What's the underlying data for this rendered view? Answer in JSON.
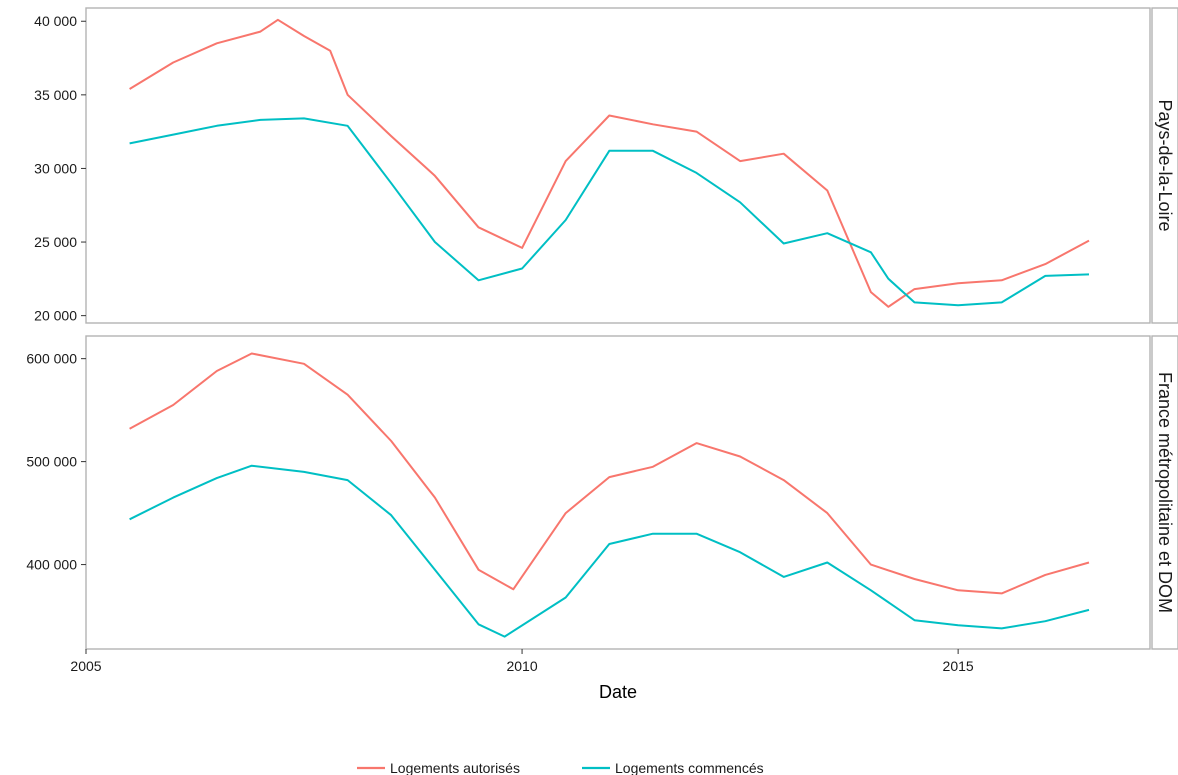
{
  "chart_data": {
    "type": "line",
    "xlabel": "Date",
    "x_ticks": [
      2005,
      2010,
      2015
    ],
    "x_range": [
      2005.0,
      2017.2
    ],
    "colors": {
      "Logements autorisés": "#F8766D",
      "Logements commencés": "#00BFC4"
    },
    "legend_position": "bottom",
    "legend": [
      "Logements autorisés",
      "Logements commencés"
    ],
    "panels": [
      {
        "strip": "Pays-de-la-Loire",
        "ylim": [
          19500,
          40900
        ],
        "y_ticks": [
          20000,
          25000,
          30000,
          35000,
          40000
        ],
        "y_tick_labels": [
          "20 000",
          "25 000",
          "30 000",
          "35 000",
          "40 000"
        ],
        "series": [
          {
            "name": "Logements autorisés",
            "x": [
              2005.5,
              2006.0,
              2006.5,
              2007.0,
              2007.2,
              2007.5,
              2007.8,
              2008.0,
              2008.5,
              2009.0,
              2009.5,
              2010.0,
              2010.5,
              2011.0,
              2011.5,
              2012.0,
              2012.5,
              2013.0,
              2013.5,
              2014.0,
              2014.2,
              2014.5,
              2015.0,
              2015.5,
              2016.0,
              2016.5
            ],
            "values": [
              35400,
              37200,
              38500,
              39300,
              40100,
              39000,
              38000,
              35000,
              32200,
              29500,
              26000,
              24600,
              30500,
              33600,
              33000,
              32500,
              30500,
              31000,
              28500,
              21600,
              20600,
              21800,
              22200,
              22400,
              23500,
              25100
            ]
          },
          {
            "name": "Logements commencés",
            "x": [
              2005.5,
              2006.0,
              2006.5,
              2007.0,
              2007.5,
              2008.0,
              2008.5,
              2009.0,
              2009.5,
              2010.0,
              2010.5,
              2011.0,
              2011.5,
              2012.0,
              2012.5,
              2013.0,
              2013.5,
              2014.0,
              2014.2,
              2014.5,
              2015.0,
              2015.5,
              2016.0,
              2016.5
            ],
            "values": [
              31700,
              32300,
              32900,
              33300,
              33400,
              32900,
              29000,
              25000,
              22400,
              23200,
              26500,
              31200,
              31200,
              29700,
              27700,
              24900,
              25600,
              24300,
              22500,
              20900,
              20700,
              20900,
              22700,
              22800
            ]
          }
        ]
      },
      {
        "strip": "France métropolitaine et DOM",
        "ylim": [
          318000,
          622000
        ],
        "y_ticks": [
          400000,
          500000,
          600000
        ],
        "y_tick_labels": [
          "400 000",
          "500 000",
          "600 000"
        ],
        "series": [
          {
            "name": "Logements autorisés",
            "x": [
              2005.5,
              2006.0,
              2006.5,
              2006.9,
              2007.5,
              2008.0,
              2008.5,
              2009.0,
              2009.5,
              2009.9,
              2010.5,
              2011.0,
              2011.5,
              2012.0,
              2012.5,
              2013.0,
              2013.5,
              2014.0,
              2014.5,
              2015.0,
              2015.5,
              2016.0,
              2016.5
            ],
            "values": [
              532000,
              555000,
              588000,
              605000,
              595000,
              565000,
              520000,
              465000,
              395000,
              376000,
              450000,
              485000,
              495000,
              518000,
              505000,
              482000,
              450000,
              400000,
              386000,
              375000,
              372000,
              390000,
              402000
            ]
          },
          {
            "name": "Logements commencés",
            "x": [
              2005.5,
              2006.0,
              2006.5,
              2006.9,
              2007.5,
              2008.0,
              2008.5,
              2009.0,
              2009.5,
              2009.8,
              2010.5,
              2011.0,
              2011.5,
              2012.0,
              2012.5,
              2013.0,
              2013.5,
              2014.0,
              2014.5,
              2015.0,
              2015.5,
              2016.0,
              2016.5
            ],
            "values": [
              444000,
              465000,
              484000,
              496000,
              490000,
              482000,
              448000,
              395000,
              342000,
              330000,
              368000,
              420000,
              430000,
              430000,
              412000,
              388000,
              402000,
              375000,
              346000,
              341000,
              338000,
              345000,
              356000
            ]
          }
        ]
      }
    ]
  }
}
